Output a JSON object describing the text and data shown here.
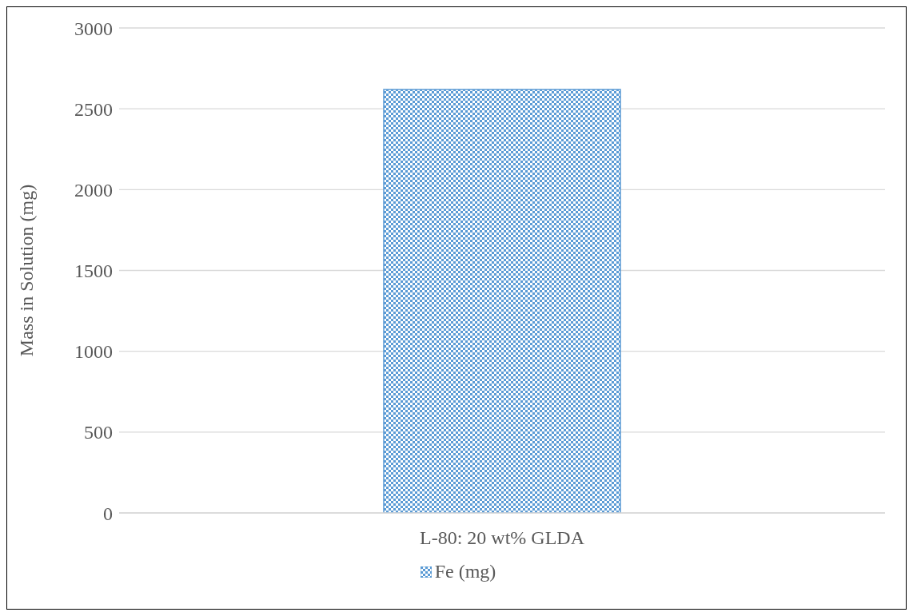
{
  "chart_data": {
    "type": "bar",
    "ylabel": "Mass in Solution (mg)",
    "categories": [
      "L-80: 20 wt% GLDA"
    ],
    "series": [
      {
        "name": "Fe (mg)",
        "color": "#5b9bd5",
        "values": [
          2620
        ]
      }
    ],
    "ylim": [
      0,
      3000
    ],
    "yticks": [
      0,
      500,
      1000,
      1500,
      2000,
      2500,
      3000
    ],
    "grid": "y",
    "legend": "bottom"
  }
}
